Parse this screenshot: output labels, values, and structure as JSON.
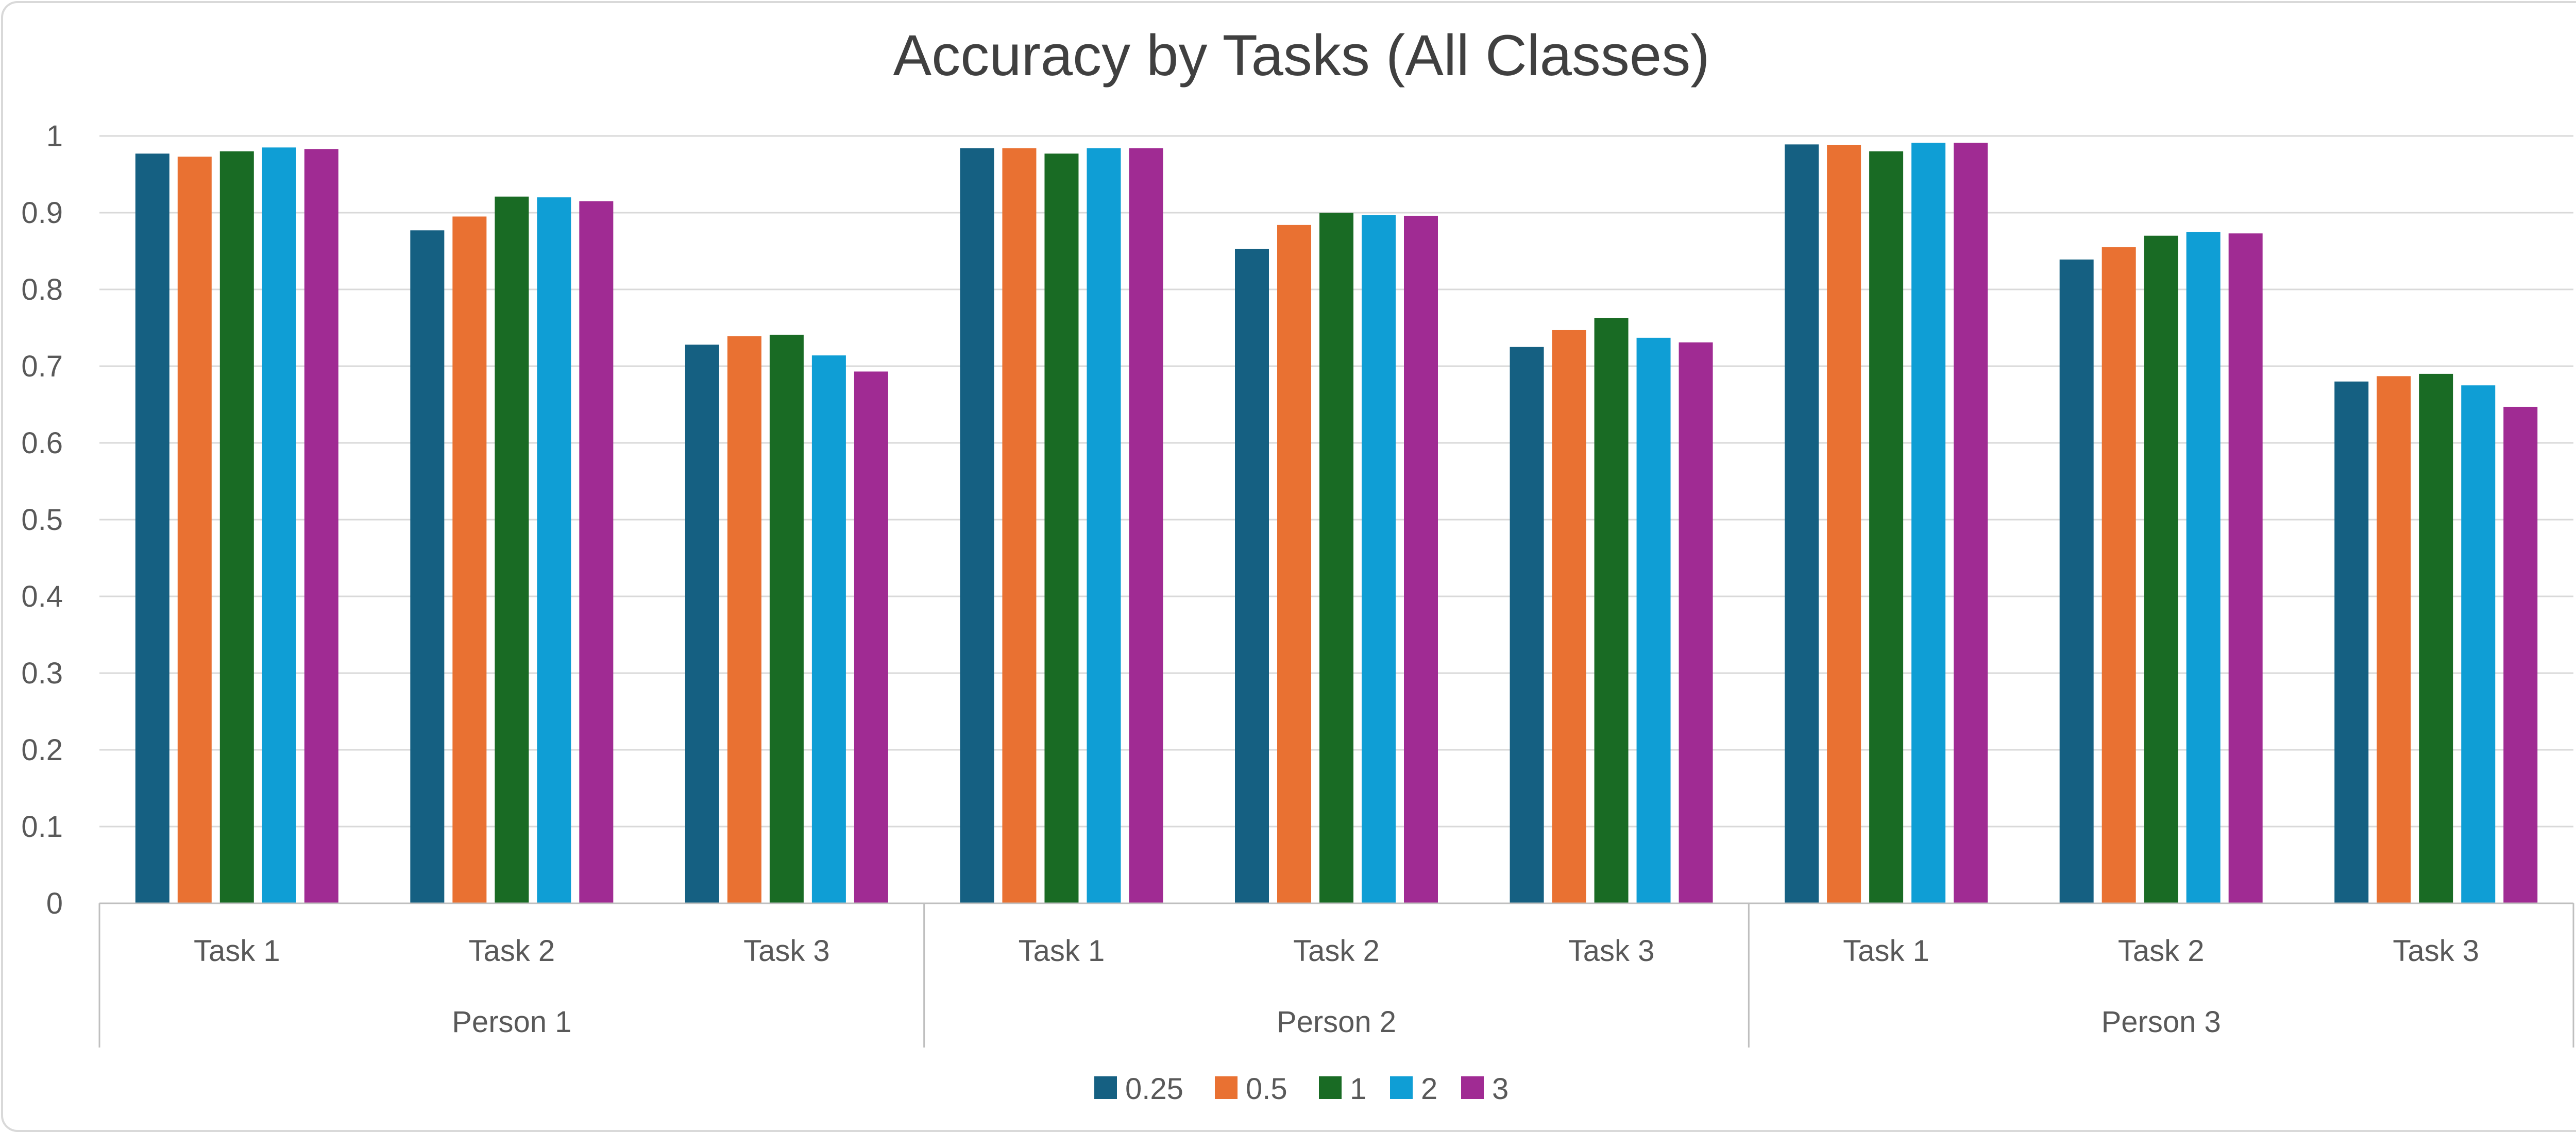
{
  "chart_data": {
    "type": "bar",
    "title": "Accuracy by Tasks (All Classes)",
    "xlabel": "",
    "ylabel": "",
    "ylim": [
      0,
      1
    ],
    "yticks": [
      "0",
      "0.1",
      "0.2",
      "0.3",
      "0.4",
      "0.5",
      "0.6",
      "0.7",
      "0.8",
      "0.9",
      "1"
    ],
    "grid": true,
    "legend_position": "bottom",
    "groups": [
      {
        "label": "Person 1",
        "categories": [
          "Task 1",
          "Task 2",
          "Task 3"
        ]
      },
      {
        "label": "Person 2",
        "categories": [
          "Task 1",
          "Task 2",
          "Task 3"
        ]
      },
      {
        "label": "Person 3",
        "categories": [
          "Task 1",
          "Task 2",
          "Task 3"
        ]
      }
    ],
    "series": [
      {
        "name": "0.25",
        "color": "#156082",
        "values": [
          0.977,
          0.877,
          0.728,
          0.984,
          0.853,
          0.725,
          0.989,
          0.839,
          0.68
        ]
      },
      {
        "name": "0.5",
        "color": "#E97132",
        "values": [
          0.973,
          0.895,
          0.739,
          0.984,
          0.884,
          0.747,
          0.988,
          0.855,
          0.687
        ]
      },
      {
        "name": "1",
        "color": "#196B24",
        "values": [
          0.98,
          0.921,
          0.741,
          0.977,
          0.9,
          0.763,
          0.98,
          0.87,
          0.69
        ]
      },
      {
        "name": "2",
        "color": "#0F9ED5",
        "values": [
          0.985,
          0.92,
          0.714,
          0.984,
          0.897,
          0.737,
          0.991,
          0.875,
          0.675
        ]
      },
      {
        "name": "3",
        "color": "#A02B93",
        "values": [
          0.983,
          0.915,
          0.693,
          0.984,
          0.896,
          0.731,
          0.991,
          0.873,
          0.647
        ]
      }
    ]
  }
}
